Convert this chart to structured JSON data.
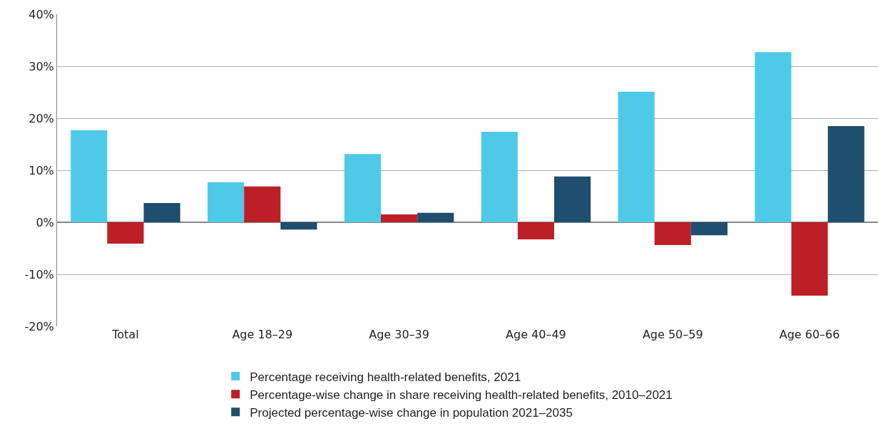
{
  "chart_data": {
    "type": "bar",
    "categories": [
      "Total",
      "Age 18–29",
      "Age 30–39",
      "Age 40–49",
      "Age 50–59",
      "Age 60–66"
    ],
    "series": [
      {
        "name": "Percentage receiving health-related benefits, 2021",
        "color": "#4ecae8",
        "values": [
          17.7,
          7.7,
          13.1,
          17.4,
          25.1,
          32.7
        ]
      },
      {
        "name": "Percentage-wise change in share receiving health-related benefits, 2010–2021",
        "color": "#bd1f26",
        "values": [
          -4.1,
          6.9,
          1.5,
          -3.3,
          -4.4,
          -14.1
        ]
      },
      {
        "name": "Projected percentage-wise change in population 2021–2035",
        "color": "#1f4e6e",
        "values": [
          3.7,
          -1.4,
          1.8,
          8.8,
          -2.5,
          18.5
        ]
      }
    ],
    "ylim": [
      -20,
      40
    ],
    "yticks": [
      {
        "value": -20,
        "label": "-20%"
      },
      {
        "value": -10,
        "label": "-10%"
      },
      {
        "value": 0,
        "label": "0%"
      },
      {
        "value": 10,
        "label": "10%"
      },
      {
        "value": 20,
        "label": "20%"
      },
      {
        "value": 30,
        "label": "30%"
      },
      {
        "value": 40,
        "label": "40%"
      }
    ],
    "grid": "y",
    "legend": "bottom"
  }
}
